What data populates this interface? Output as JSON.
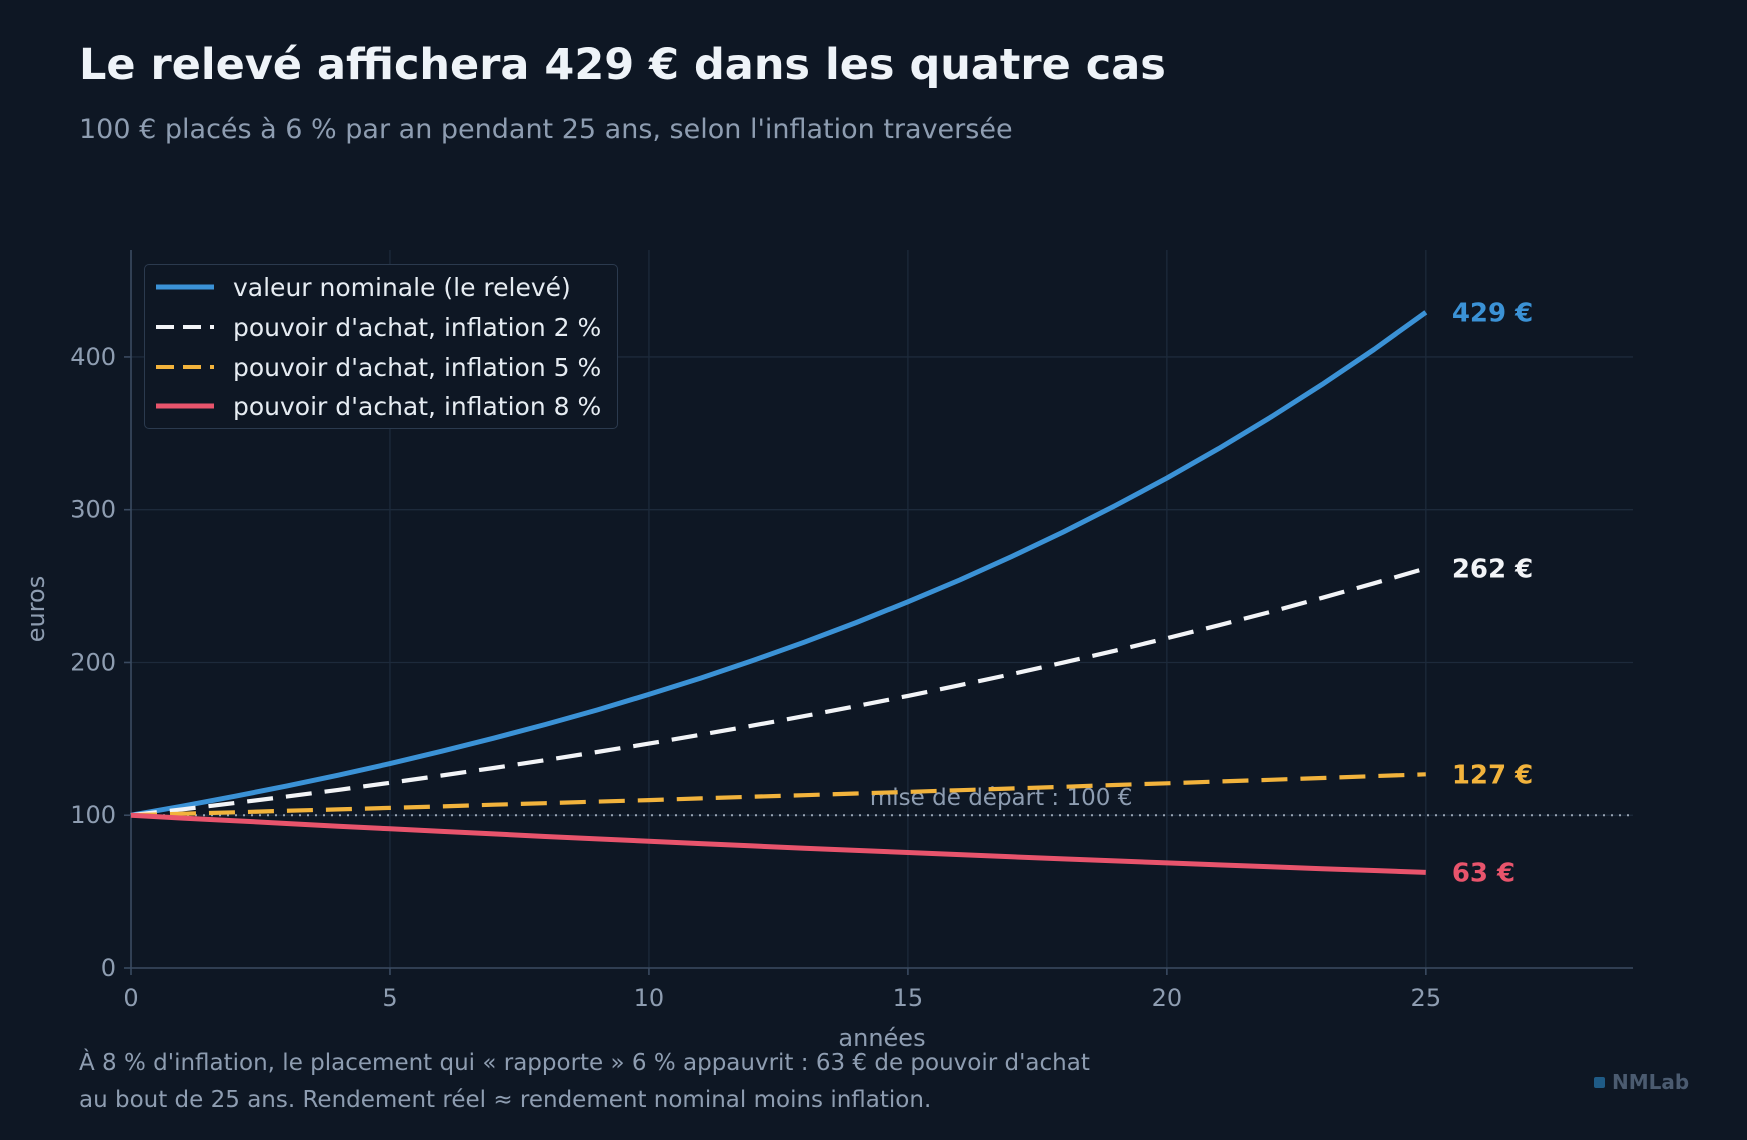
{
  "title": "Le relevé affichera 429 € dans les quatre cas",
  "subtitle": "100 € placés à 6 % par an pendant 25 ans, selon l'inflation traversée",
  "caption": {
    "line1": "À 8 % d'inflation, le placement qui « rapporte » 6 % appauvrit : 63 € de pouvoir d'achat",
    "line2": "au bout de 25 ans. Rendement réel ≈ rendement nominal moins inflation."
  },
  "brand": "NMLab",
  "chart_data": {
    "type": "line",
    "xlabel": "années",
    "ylabel": "euros",
    "xlim": [
      0,
      29
    ],
    "ylim": [
      0,
      470
    ],
    "xticks": [
      0,
      5,
      10,
      15,
      20,
      25
    ],
    "yticks": [
      0,
      100,
      200,
      300,
      400
    ],
    "grid": true,
    "legend_position": "top-left",
    "x": [
      0,
      1,
      2,
      3,
      4,
      5,
      6,
      7,
      8,
      9,
      10,
      11,
      12,
      13,
      14,
      15,
      16,
      17,
      18,
      19,
      20,
      21,
      22,
      23,
      24,
      25
    ],
    "series": [
      {
        "name": "valeur nominale (le relevé)",
        "color": "#3b92d6",
        "style": "solid",
        "end_label": "429 €",
        "values": [
          100,
          106,
          112.4,
          119.1,
          126.2,
          133.8,
          141.9,
          150.4,
          159.4,
          168.9,
          179.1,
          189.8,
          201.2,
          213.3,
          226.1,
          239.7,
          254.0,
          269.3,
          285.4,
          302.6,
          320.7,
          340.0,
          360.4,
          382.0,
          404.9,
          429.2
        ]
      },
      {
        "name": "pouvoir d'achat, inflation 2 %",
        "color": "#f2f4f7",
        "style": "dashed",
        "end_label": "262 €",
        "values": [
          100,
          103.9,
          108.0,
          112.2,
          116.6,
          121.2,
          126.0,
          130.9,
          136.1,
          141.4,
          146.9,
          152.7,
          158.7,
          164.9,
          171.4,
          178.1,
          185.1,
          192.3,
          199.9,
          207.7,
          215.9,
          224.3,
          233.1,
          242.3,
          251.8,
          261.6
        ]
      },
      {
        "name": "pouvoir d'achat, inflation 5 %",
        "color": "#f2b33c",
        "style": "dashed",
        "end_label": "127 €",
        "values": [
          100,
          101.0,
          101.9,
          102.9,
          103.8,
          104.8,
          105.8,
          106.9,
          107.9,
          108.9,
          109.9,
          111.0,
          112.1,
          113.1,
          114.2,
          115.3,
          116.4,
          117.5,
          118.6,
          119.8,
          120.9,
          122.1,
          123.2,
          124.4,
          125.6,
          126.8
        ]
      },
      {
        "name": "pouvoir d'achat, inflation 8 %",
        "color": "#e8546c",
        "style": "solid",
        "end_label": "63 €",
        "values": [
          100,
          98.1,
          96.4,
          94.6,
          92.8,
          91.1,
          89.4,
          87.8,
          86.1,
          84.5,
          83.0,
          81.4,
          79.9,
          78.4,
          77.0,
          75.6,
          74.2,
          72.8,
          71.4,
          70.1,
          68.8,
          67.5,
          66.3,
          65.0,
          63.8,
          62.6
        ]
      }
    ],
    "reference_line": {
      "value": 100,
      "label": "mise de départ : 100 €"
    }
  }
}
